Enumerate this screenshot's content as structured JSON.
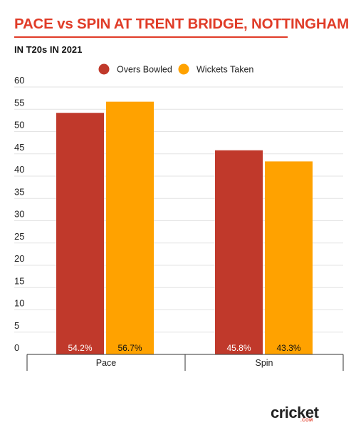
{
  "header": {
    "title": "PACE vs SPIN AT TRENT BRIDGE, NOTTINGHAM",
    "subtitle": "IN T20s IN 2021"
  },
  "brand": {
    "logo_main": "cricket",
    "logo_sub": ".COM"
  },
  "colors": {
    "title": "#e03c28",
    "overs": "#c0392b",
    "wickets": "#ffa200",
    "grid": "#e3e3e3",
    "axis": "#333333"
  },
  "chart_data": {
    "type": "bar",
    "title": "PACE vs SPIN AT TRENT BRIDGE, NOTTINGHAM",
    "subtitle": "IN T20s IN 2021",
    "categories": [
      "Pace",
      "Spin"
    ],
    "series": [
      {
        "name": "Overs Bowled",
        "values": [
          54.2,
          45.8
        ],
        "labels": [
          "54.2%",
          "45.8%"
        ],
        "color": "#c0392b"
      },
      {
        "name": "Wickets Taken",
        "values": [
          56.7,
          43.3
        ],
        "labels": [
          "56.7%",
          "43.3%"
        ],
        "color": "#ffa200"
      }
    ],
    "yticks": [
      "0",
      "5",
      "10",
      "15",
      "20",
      "25",
      "30",
      "35",
      "40",
      "45",
      "50",
      "55",
      "60"
    ],
    "ylim": [
      0,
      60
    ],
    "grid": true,
    "legend_position": "top-center"
  }
}
